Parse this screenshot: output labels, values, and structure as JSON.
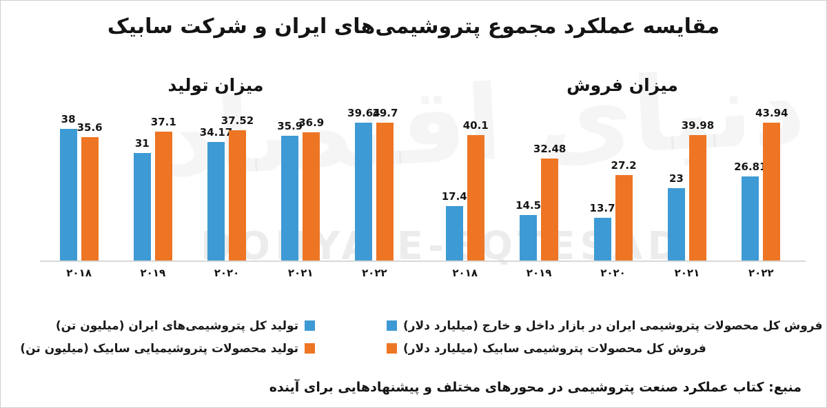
{
  "title": "مقایسه عملکرد مجموع پتروشیمی‌های ایران و شرکت سابیک",
  "colors": {
    "iran": "#3D9AD4",
    "sabic": "#ED7524",
    "axis": "#d8d8d8"
  },
  "watermark": {
    "persian": "دنیای اقتصاد",
    "latin": "DONYA-E-EQTESAD"
  },
  "chart_data": [
    {
      "type": "bar",
      "title": "میزان تولید",
      "categories": [
        "۲۰۱۸",
        "۲۰۱۹",
        "۲۰۲۰",
        "۲۰۲۱",
        "۲۰۲۲"
      ],
      "series": [
        {
          "name": "تولید کل پتروشیمی‌های ایران (میلیون تن)",
          "color_key": "iran",
          "values": [
            38,
            31,
            34.17,
            35.9,
            39.64
          ]
        },
        {
          "name": "تولید محصولات پتروشیمیایی سابیک (میلیون تن)",
          "color_key": "sabic",
          "values": [
            35.6,
            37.1,
            37.52,
            36.9,
            39.7
          ]
        }
      ],
      "grid": false,
      "value_labels_shown": true,
      "legend_position": "bottom"
    },
    {
      "type": "bar",
      "title": "میزان فروش",
      "categories": [
        "۲۰۱۸",
        "۲۰۱۹",
        "۲۰۲۰",
        "۲۰۲۱",
        "۲۰۲۲"
      ],
      "series": [
        {
          "name": "فروش کل محصولات پتروشیمی ایران در بازار داخل و خارج (میلیارد دلار)",
          "color_key": "iran",
          "values": [
            17.4,
            14.5,
            13.7,
            23,
            26.81
          ]
        },
        {
          "name": "فروش کل محصولات پتروشیمی سابیک (میلیارد دلار)",
          "color_key": "sabic",
          "values": [
            40.1,
            32.48,
            27.2,
            39.98,
            43.94
          ]
        }
      ],
      "grid": false,
      "value_labels_shown": true,
      "legend_position": "bottom"
    }
  ],
  "source": "منبع: کتاب عملکرد صنعت پتروشیمی در محورهای مختلف و پیشنهادهایی برای آینده"
}
